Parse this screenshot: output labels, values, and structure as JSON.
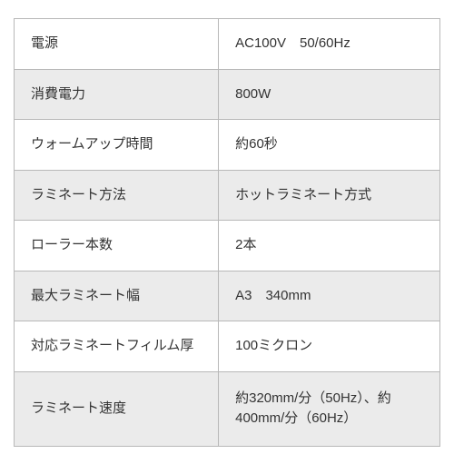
{
  "spec_table": {
    "type": "table",
    "columns": [
      "label",
      "value"
    ],
    "rows": [
      {
        "label": "電源",
        "value": "AC100V　50/60Hz"
      },
      {
        "label": "消費電力",
        "value": "800W"
      },
      {
        "label": "ウォームアップ時間",
        "value": "約60秒"
      },
      {
        "label": "ラミネート方法",
        "value": "ホットラミネート方式"
      },
      {
        "label": "ローラー本数",
        "value": "2本"
      },
      {
        "label": "最大ラミネート幅",
        "value": "A3　340mm"
      },
      {
        "label": "対応ラミネートフィルム厚",
        "value": "100ミクロン"
      },
      {
        "label": "ラミネート速度",
        "value": "約320mm/分（50Hz）、約400mm/分（60Hz）"
      }
    ],
    "row_bg_colors": [
      "#ffffff",
      "#ebebeb"
    ],
    "border_color": "#b8b8b8",
    "text_color": "#333333",
    "font_size": 15,
    "label_col_width_pct": 48,
    "value_col_width_pct": 52
  }
}
